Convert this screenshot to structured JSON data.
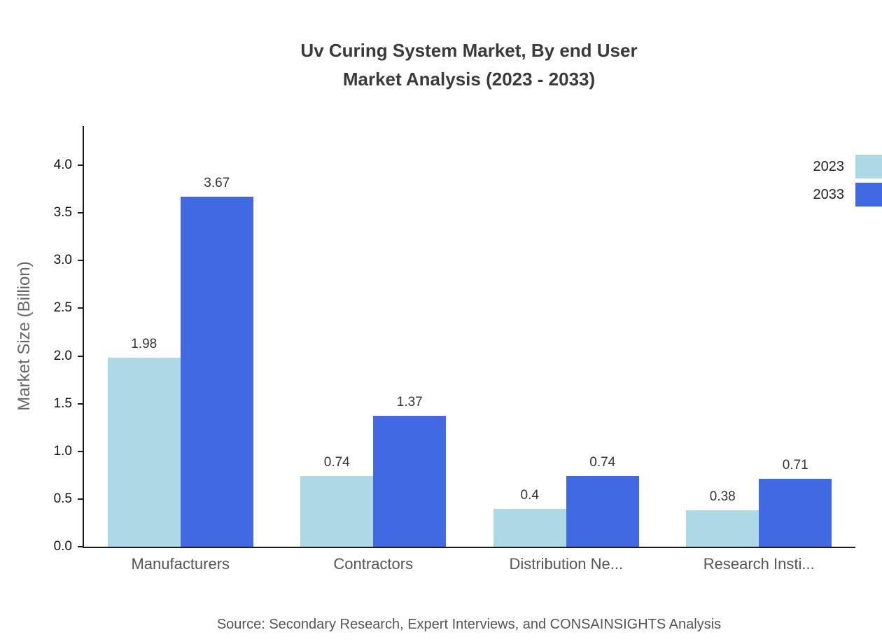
{
  "title": {
    "line1": "Uv Curing System Market, By end User",
    "line2": "Market Analysis (2023 - 2033)"
  },
  "source": "Source: Secondary Research, Expert Interviews, and CONSAINSIGHTS Analysis",
  "colors": {
    "series_2023": "#add8e6",
    "series_2033": "#4169e1",
    "axis": "#1a1a1a"
  },
  "chart_data": {
    "type": "bar",
    "title": "Uv Curing System Market, By end User Market Analysis (2023 - 2033)",
    "categories": [
      "Manufacturers",
      "Contractors",
      "Distribution Ne...",
      "Research Insti..."
    ],
    "series": [
      {
        "name": "2023",
        "color": "#add8e6",
        "values": [
          1.98,
          0.74,
          0.4,
          0.38
        ]
      },
      {
        "name": "2033",
        "color": "#4169e1",
        "values": [
          3.67,
          1.37,
          0.74,
          0.71
        ]
      }
    ],
    "xlabel": "",
    "ylabel": "Market Size (Billion)",
    "ylim": [
      0,
      4.4
    ],
    "yticks": [
      0.0,
      0.5,
      1.0,
      1.5,
      2.0,
      2.5,
      3.0,
      3.5,
      4.0
    ],
    "grid": false,
    "legend_position": "top-right"
  }
}
